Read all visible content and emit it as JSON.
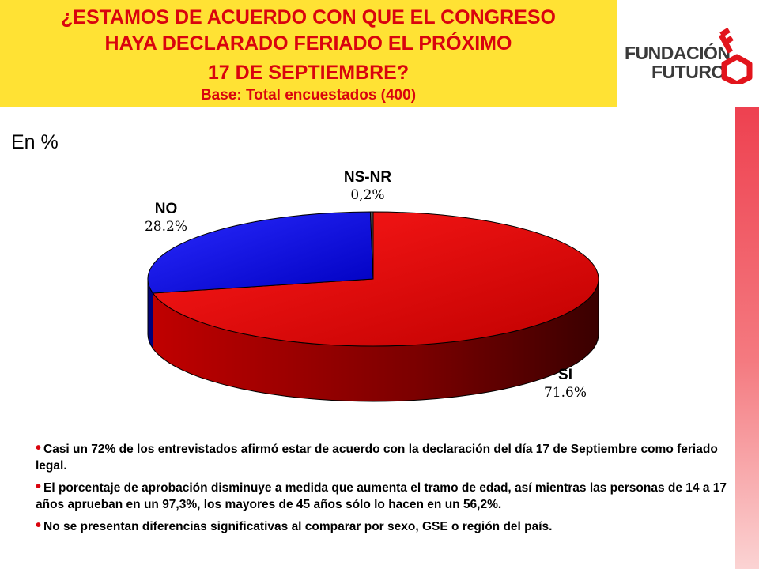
{
  "header": {
    "title_lines": [
      "¿ESTAMOS DE ACUERDO CON QUE EL CONGRESO",
      "HAYA DECLARADO FERIADO EL PRÓXIMO",
      "17 DE SEPTIEMBRE?"
    ],
    "subtitle": "Base: Total encuestados (400)"
  },
  "logo": {
    "line1": "FUNDACIÓN",
    "line2": "FUTURO"
  },
  "unit_label": "En %",
  "colors": {
    "header_bg": "#ffe234",
    "title": "#d9040e",
    "si": "#e50d0d",
    "no": "#1414e6",
    "nsnr": "#555555",
    "stripe": "#ee4150"
  },
  "chart_data": {
    "type": "pie",
    "slices": [
      {
        "label": "SI",
        "value": 71.6,
        "value_text": "71.6%",
        "color": "#e50d0d"
      },
      {
        "label": "NO",
        "value": 28.2,
        "value_text": "28.2%",
        "color": "#1414e6"
      },
      {
        "label": "NS-NR",
        "value": 0.2,
        "value_text": "0,2%",
        "color": "#555555"
      }
    ]
  },
  "notes": [
    "Casi un 72% de los entrevistados afirmó estar de acuerdo con la declaración del día 17 de Septiembre como feriado legal.",
    "El porcentaje de aprobación disminuye a medida que aumenta el tramo de edad, así mientras las personas de 14 a 17 años aprueban en un 97,3%, los mayores de 45 años sólo lo hacen en un 56,2%.",
    "No se presentan diferencias significativas al comparar por sexo, GSE o región del país."
  ]
}
